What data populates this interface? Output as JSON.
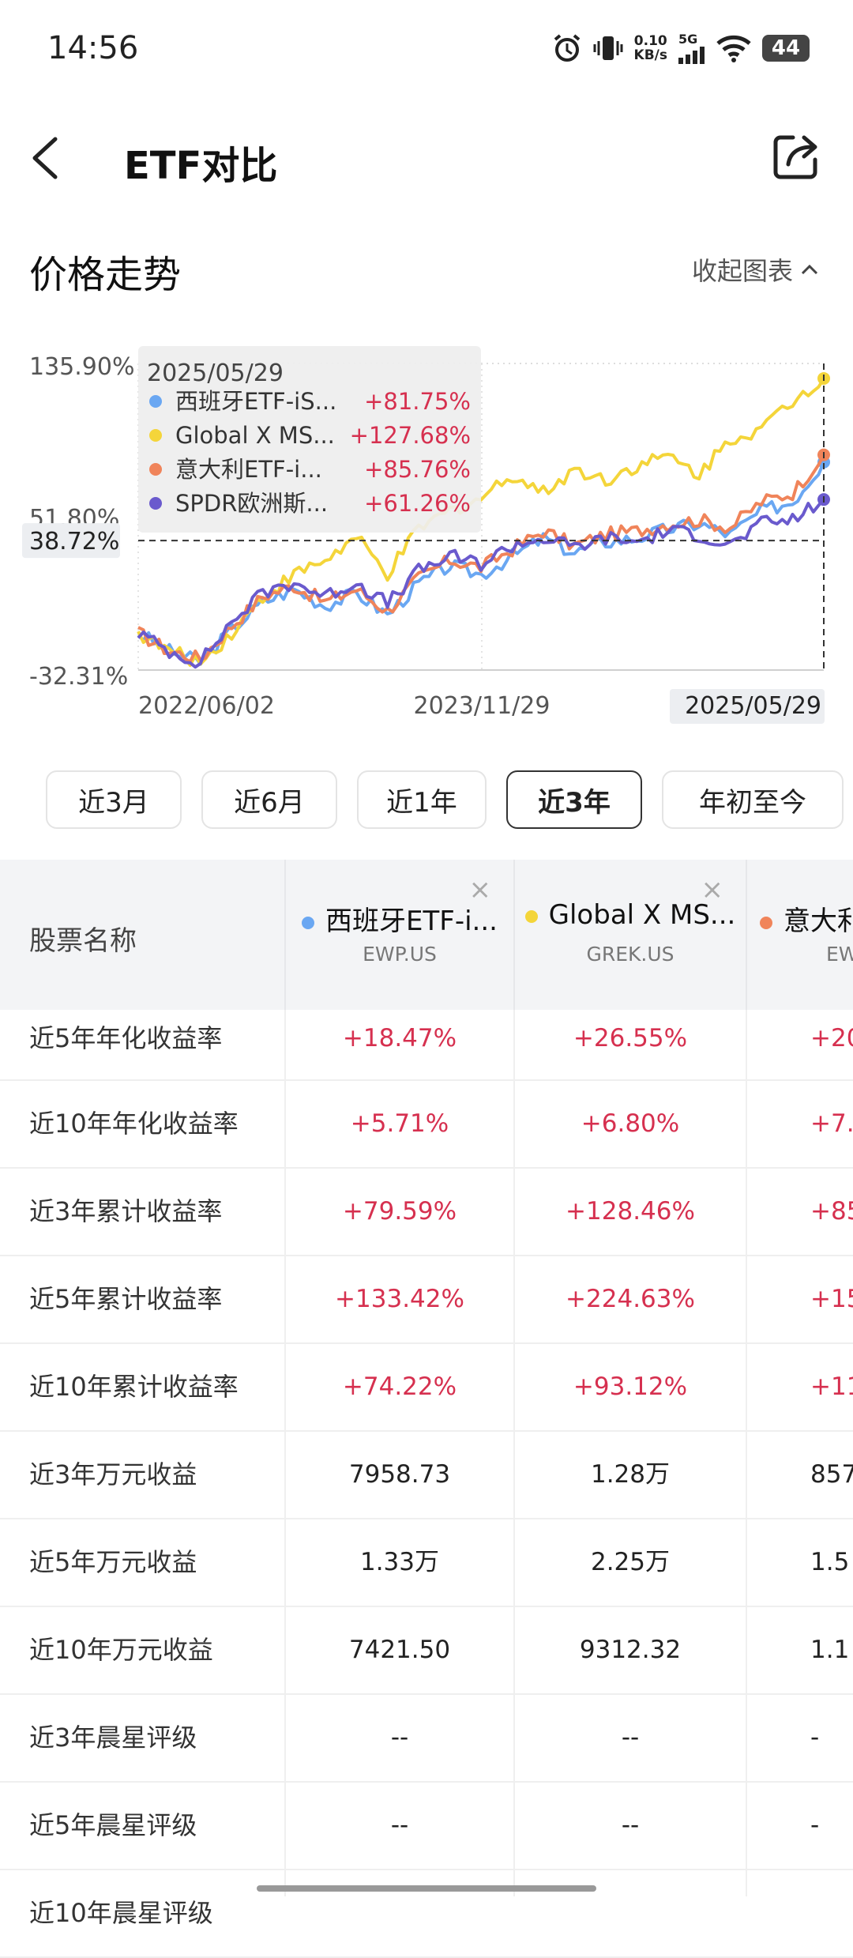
{
  "status": {
    "time": "14:56",
    "speed_value": "0.10",
    "speed_unit": "KB/s",
    "network": "5G",
    "battery": "44"
  },
  "nav": {
    "title": "ETF对比"
  },
  "section": {
    "title": "价格走势",
    "collapse_label": "收起图表"
  },
  "chart_data": {
    "type": "line",
    "y_ticks": [
      "135.90%",
      "51.80%",
      "-32.31%"
    ],
    "y_range": [
      -32.31,
      135.9
    ],
    "crosshair_value_label": "38.72%",
    "crosshair_value": 38.72,
    "x_ticks": [
      "2022/06/02",
      "2023/11/29",
      "2025/05/29"
    ],
    "tooltip": {
      "date": "2025/05/29",
      "items": [
        {
          "name": "西班牙ETF-iS...",
          "value": "+81.75%",
          "color": "#6aa7f2"
        },
        {
          "name": "Global X MS...",
          "value": "+127.68%",
          "color": "#f4d53a"
        },
        {
          "name": "意大利ETF-i...",
          "value": "+85.76%",
          "color": "#f0845a"
        },
        {
          "name": "SPDR欧洲斯...",
          "value": "+61.26%",
          "color": "#6a5acd"
        }
      ]
    },
    "series": [
      {
        "color": "#6aa7f2",
        "values": [
          -12,
          -22,
          -28,
          -10,
          5,
          12,
          3,
          10,
          -2,
          15,
          25,
          20,
          30,
          40,
          32,
          38,
          40,
          45,
          48,
          42,
          55,
          60,
          81.75
        ]
      },
      {
        "color": "#f4d53a",
        "values": [
          -12,
          -22,
          -28,
          -12,
          8,
          20,
          28,
          40,
          20,
          45,
          55,
          62,
          75,
          65,
          78,
          72,
          80,
          85,
          75,
          95,
          100,
          115,
          127.68
        ]
      },
      {
        "color": "#f0845a",
        "values": [
          -12,
          -22,
          -26,
          -8,
          8,
          14,
          5,
          12,
          0,
          18,
          28,
          24,
          34,
          44,
          36,
          42,
          44,
          48,
          50,
          46,
          60,
          65,
          85.76
        ]
      },
      {
        "color": "#6a5acd",
        "values": [
          -12,
          -22,
          -28,
          -6,
          10,
          16,
          8,
          16,
          4,
          22,
          30,
          26,
          36,
          40,
          35,
          40,
          38,
          44,
          42,
          36,
          48,
          50,
          61.26
        ]
      }
    ]
  },
  "ranges": [
    "近3月",
    "近6月",
    "近1年",
    "近3年",
    "年初至今"
  ],
  "active_range": "近3年",
  "table": {
    "header_label": "股票名称",
    "close_glyph": "×",
    "columns": [
      {
        "name": "西班牙ETF-i...",
        "code": "EWP.US",
        "color": "#6aa7f2"
      },
      {
        "name": "Global X MS...",
        "code": "GREK.US",
        "color": "#f4d53a"
      },
      {
        "name": "意大利",
        "code": "EW",
        "color": "#f0845a"
      }
    ],
    "rows": [
      {
        "label": "近5年年化收益率",
        "values": [
          "+18.47%",
          "+26.55%",
          "+20"
        ],
        "type": "pos"
      },
      {
        "label": "近10年年化收益率",
        "values": [
          "+5.71%",
          "+6.80%",
          "+7."
        ],
        "type": "pos"
      },
      {
        "label": "近3年累计收益率",
        "values": [
          "+79.59%",
          "+128.46%",
          "+85"
        ],
        "type": "pos"
      },
      {
        "label": "近5年累计收益率",
        "values": [
          "+133.42%",
          "+224.63%",
          "+151"
        ],
        "type": "pos"
      },
      {
        "label": "近10年累计收益率",
        "values": [
          "+74.22%",
          "+93.12%",
          "+113"
        ],
        "type": "pos"
      },
      {
        "label": "近3年万元收益",
        "values": [
          "7958.73",
          "1.28万",
          "857"
        ],
        "type": "neu"
      },
      {
        "label": "近5年万元收益",
        "values": [
          "1.33万",
          "2.25万",
          "1.5"
        ],
        "type": "neu"
      },
      {
        "label": "近10年万元收益",
        "values": [
          "7421.50",
          "9312.32",
          "1.1"
        ],
        "type": "neu"
      },
      {
        "label": "近3年晨星评级",
        "values": [
          "--",
          "--",
          "-"
        ],
        "type": "neu"
      },
      {
        "label": "近5年晨星评级",
        "values": [
          "--",
          "--",
          "-"
        ],
        "type": "neu"
      },
      {
        "label": "近10年晨星评级",
        "values": [
          "",
          "",
          ""
        ],
        "type": "neu"
      }
    ]
  }
}
